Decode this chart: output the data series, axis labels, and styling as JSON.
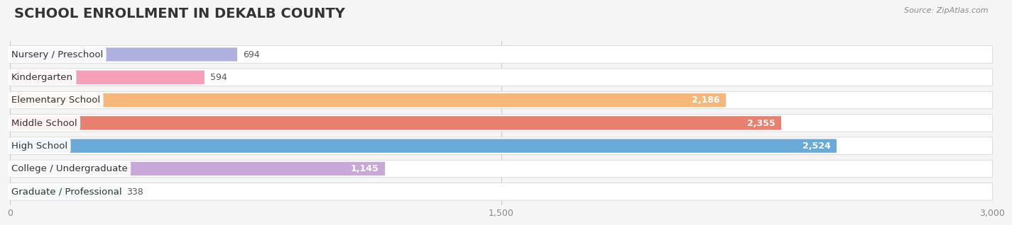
{
  "title": "SCHOOL ENROLLMENT IN DEKALB COUNTY",
  "source": "Source: ZipAtlas.com",
  "categories": [
    "Nursery / Preschool",
    "Kindergarten",
    "Elementary School",
    "Middle School",
    "High School",
    "College / Undergraduate",
    "Graduate / Professional"
  ],
  "values": [
    694,
    594,
    2186,
    2355,
    2524,
    1145,
    338
  ],
  "bar_colors": [
    "#b0b0e0",
    "#f5a0b8",
    "#f5b87a",
    "#e88070",
    "#6aaad8",
    "#c8a8d8",
    "#80cece"
  ],
  "xlim_max": 3000,
  "xticks": [
    0,
    1500,
    3000
  ],
  "xtick_labels": [
    "0",
    "1,500",
    "3,000"
  ],
  "bg_color": "#f5f5f5",
  "bar_bg_color": "#e8e8e8",
  "title_fontsize": 14,
  "label_fontsize": 9.5,
  "value_fontsize": 9,
  "value_threshold": 900,
  "bar_height": 0.6,
  "bg_bar_height": 0.76
}
